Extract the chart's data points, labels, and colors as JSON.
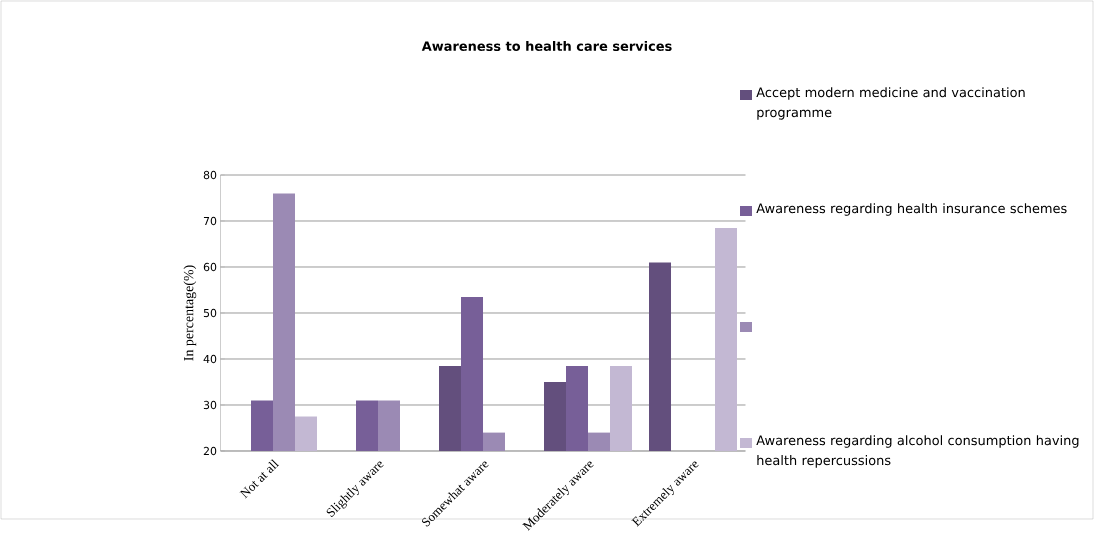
{
  "chart_data": {
    "type": "bar",
    "title": "Awareness to health care services",
    "ylabel": "In percentage(%)",
    "categories": [
      "Not at all",
      "Slightly aware",
      "Somewhat aware",
      "Moderately aware",
      "Extremely aware"
    ],
    "series": [
      {
        "name": "Accept modern medicine and vaccination programme",
        "color": "#634f7d",
        "values": [
          null,
          null,
          38.5,
          35,
          61
        ]
      },
      {
        "name": "Awareness regarding health insurance schemes",
        "color": "#775f98",
        "values": [
          31,
          31,
          53.5,
          38.5,
          null
        ]
      },
      {
        "color": "#9b8ab4",
        "values": [
          76,
          31,
          24,
          24,
          null
        ]
      },
      {
        "name": "Awareness regarding alcohol consumption having health repercussions",
        "color": "#c3b8d3",
        "values": [
          27.5,
          null,
          null,
          38.5,
          68.5
        ]
      }
    ],
    "ylim": [
      20,
      80
    ],
    "yticks": [
      20,
      30,
      40,
      50,
      60,
      70,
      80
    ],
    "grid": "y",
    "legend": "right"
  }
}
